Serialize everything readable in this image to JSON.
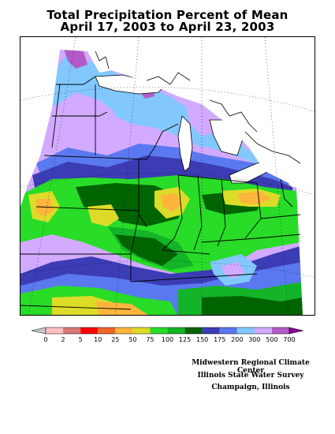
{
  "title": {
    "line1": "Total Precipitation Percent of Mean",
    "line2": "April 17, 2003 to April 23, 2003"
  },
  "legend": {
    "labels": [
      "0",
      "2",
      "5",
      "10",
      "25",
      "50",
      "75",
      "100",
      "125",
      "150",
      "175",
      "200",
      "300",
      "500",
      "700"
    ],
    "colors": [
      "#c8c8c8",
      "#ffc0c0",
      "#d87878",
      "#ff0000",
      "#f06428",
      "#ffb43c",
      "#dcdc28",
      "#28dc28",
      "#14b428",
      "#006400",
      "#3c3cb4",
      "#5a78f0",
      "#82c8ff",
      "#d2aaff",
      "#b45ac8",
      "#8c0096"
    ]
  },
  "credits": {
    "line1": "Midwestern Regional Climate Center",
    "line2": "Illinois State Water Survey",
    "line3": "Champaign, Illinois"
  }
}
